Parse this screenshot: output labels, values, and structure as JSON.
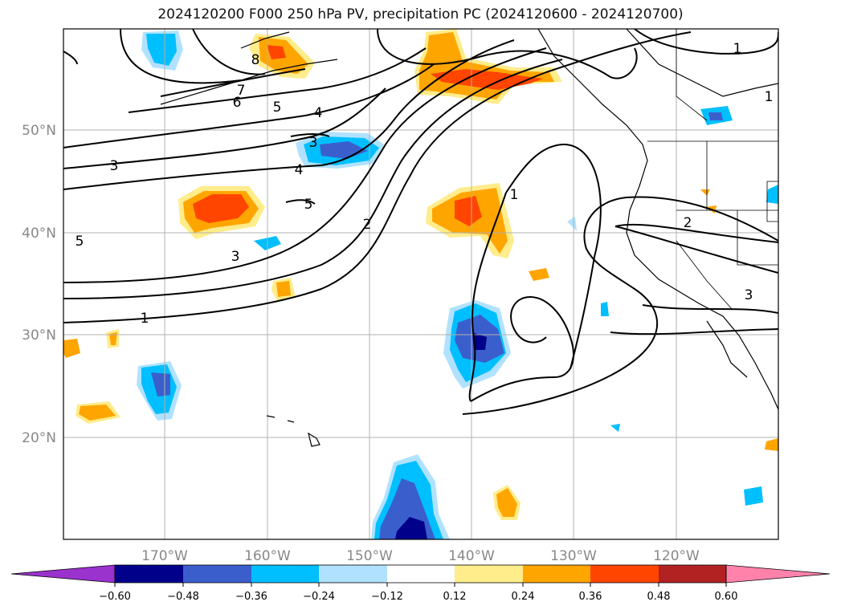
{
  "title": "2024120200 F000 250 hPa PV, precipitation PC (2024120600 - 2024120700)",
  "map": {
    "lat_labels": [
      "50°N",
      "40°N",
      "30°N",
      "20°N"
    ],
    "lon_labels": [
      "170°W",
      "160°W",
      "150°W",
      "140°W",
      "130°W",
      "120°W"
    ],
    "contour_labels": [
      "1",
      "2",
      "3",
      "4",
      "5",
      "6",
      "7",
      "8",
      "1",
      "2",
      "3",
      "3",
      "4",
      "5",
      "3",
      "1",
      "1",
      "5"
    ]
  },
  "colorbar": {
    "ticks": [
      "−0.60",
      "−0.48",
      "−0.36",
      "−0.24",
      "−0.12",
      "0.12",
      "0.24",
      "0.36",
      "0.48",
      "0.60"
    ],
    "colors": [
      "#9a32cd",
      "#00008b",
      "#3a5fcd",
      "#00bfff",
      "#b0e2ff",
      "#ffffff",
      "#ffec8b",
      "#ffa500",
      "#ff4500",
      "#b22222",
      "#ff82ab"
    ]
  }
}
